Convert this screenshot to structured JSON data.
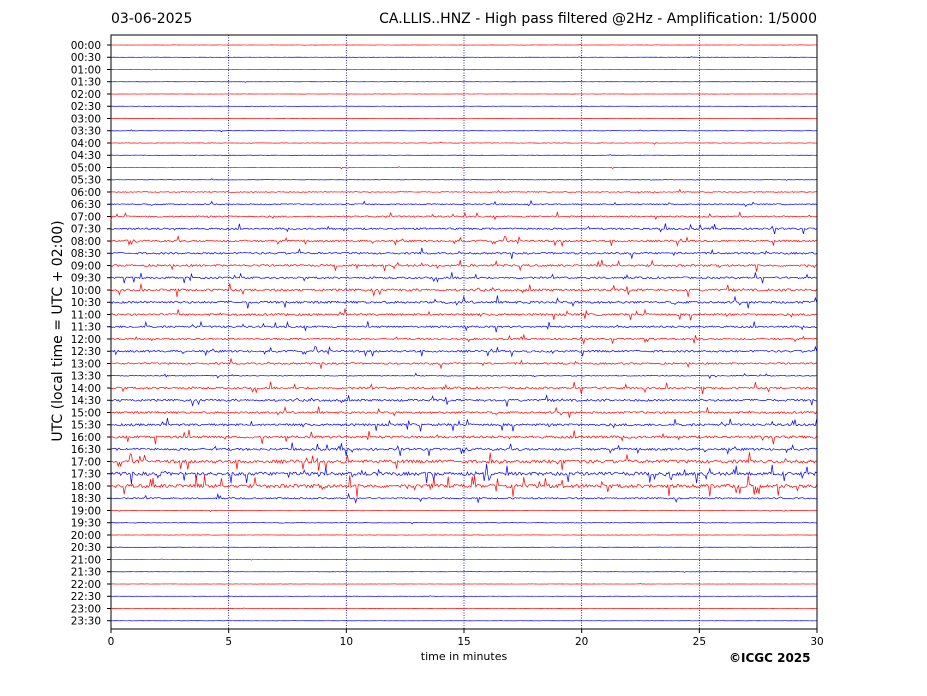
{
  "header": {
    "date": "03-06-2025",
    "title": "CA.LLIS..HNZ - High pass filtered @2Hz - Amplification: 1/5000"
  },
  "footer": {
    "credit": "©ICGC 2025"
  },
  "chart_data": {
    "type": "line",
    "title": "CA.LLIS..HNZ - High pass filtered @2Hz - Amplification: 1/5000",
    "xlabel": "time in minutes",
    "ylabel": "UTC (local time = UTC + 02:00)",
    "xlim": [
      0,
      30
    ],
    "x_ticks": [
      0,
      5,
      10,
      15,
      20,
      25,
      30
    ],
    "x_tick_labels": [
      "0",
      "5",
      "10",
      "15",
      "20",
      "25",
      "30"
    ],
    "vertical_gridlines_at": [
      5,
      10,
      15,
      20,
      25
    ],
    "grid": "dotted vertical",
    "row_labels": [
      "00:00",
      "00:30",
      "01:00",
      "01:30",
      "02:00",
      "02:30",
      "03:00",
      "03:30",
      "04:00",
      "04:30",
      "05:00",
      "05:30",
      "06:00",
      "06:30",
      "07:00",
      "07:30",
      "08:00",
      "08:30",
      "09:00",
      "09:30",
      "10:00",
      "10:30",
      "11:00",
      "11:30",
      "12:00",
      "12:30",
      "13:00",
      "13:30",
      "14:00",
      "14:30",
      "15:00",
      "15:30",
      "16:00",
      "16:30",
      "17:00",
      "17:30",
      "18:00",
      "18:30",
      "19:00",
      "19:30",
      "20:00",
      "20:30",
      "21:00",
      "21:30",
      "22:00",
      "22:30",
      "23:00",
      "23:30"
    ],
    "row_colors": [
      "#ff0000",
      "#0000ff"
    ],
    "row_activity_level": [
      0.3,
      0.3,
      0.3,
      0.3,
      0.3,
      0.3,
      0.4,
      0.5,
      0.6,
      0.4,
      0.6,
      0.5,
      1.2,
      1.6,
      2.0,
      2.5,
      2.7,
      2.6,
      2.8,
      2.5,
      3.2,
      3.2,
      2.8,
      2.6,
      2.2,
      2.8,
      2.4,
      1.2,
      2.8,
      3.0,
      2.8,
      3.2,
      3.4,
      3.2,
      4.5,
      4.8,
      5.0,
      2.0,
      0.9,
      0.7,
      0.4,
      0.4,
      0.3,
      0.3,
      0.3,
      0.3,
      0.3,
      0.3
    ]
  }
}
